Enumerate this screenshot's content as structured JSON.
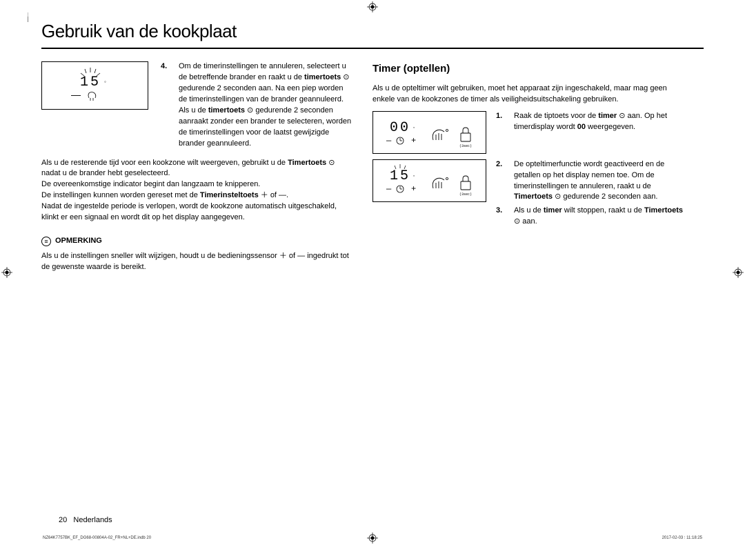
{
  "title": "Gebruik van de kookplaat",
  "left": {
    "illus1": {
      "digits": "15",
      "sub_minus": "—",
      "sub_touch": "✋"
    },
    "step4": {
      "num": "4.",
      "text": "Om de timerinstellingen te annuleren, selecteert u de betreffende brander en raakt u de timertoets ⊙ gedurende 2 seconden aan. Na een piep worden de timerinstellingen van de brander geannuleerd. Als u de timertoets ⊙ gedurende 2 seconden aanraakt zonder een brander te selecteren, worden de timerinstellingen voor de laatst gewijzigde brander geannuleerd."
    },
    "para1": "Als u de resterende tijd voor een kookzone wilt weergeven, gebruikt u de Timertoets ⊙ nadat u de brander hebt geselecteerd.",
    "para2": "De overeenkomstige indicator begint dan langzaam te knipperen.",
    "para3": "De instellingen kunnen worden gereset met de Timerinsteltoets ＋ of —.",
    "para4": "Nadat de ingestelde periode is verlopen, wordt de kookzone automatisch uitgeschakeld, klinkt er een signaal en wordt dit op het display aangegeven.",
    "note_label": "OPMERKING",
    "note_text": "Als u de instellingen sneller wilt wijzigen, houdt u de bedieningssensor ＋ of — ingedrukt tot de gewenste waarde is bereikt."
  },
  "right": {
    "heading": "Timer (optellen)",
    "intro": "Als u de opteltimer wilt gebruiken, moet het apparaat zijn ingeschakeld, maar mag geen enkele van de kookzones de timer als veiligheidsuitschakeling gebruiken.",
    "illus_a": {
      "digits": "00",
      "minus": "—",
      "clock": "⊙",
      "plus": "＋",
      "hand": "👆",
      "lock": "🔒",
      "lock_sub": "(3sec)"
    },
    "illus_b": {
      "digits": "15",
      "minus": "—",
      "clock": "⊙",
      "plus": "＋",
      "hand": "👆",
      "lock": "🔒",
      "lock_sub": "(3sec)"
    },
    "step1": {
      "num": "1.",
      "text": "Raak de tiptoets voor de timer ⊙ aan. Op het timerdisplay wordt 00 weergegeven."
    },
    "step2": {
      "num": "2.",
      "text": "De opteltimerfunctie wordt geactiveerd en de getallen op het display nemen toe. Om de timerinstellingen te annuleren, raakt u de Timertoets ⊙ gedurende 2 seconden aan."
    },
    "step3": {
      "num": "3.",
      "text": "Als u de timer wilt stoppen, raakt u de Timertoets ⊙ aan."
    }
  },
  "footer": {
    "page": "20",
    "lang": "Nederlands"
  },
  "tiny": {
    "left": "NZ64K7757BK_EF_DG68-00804A-02_FR+NL+DE.indb   20",
    "right": "2017-02-03   ⫶ 11:18:25"
  }
}
